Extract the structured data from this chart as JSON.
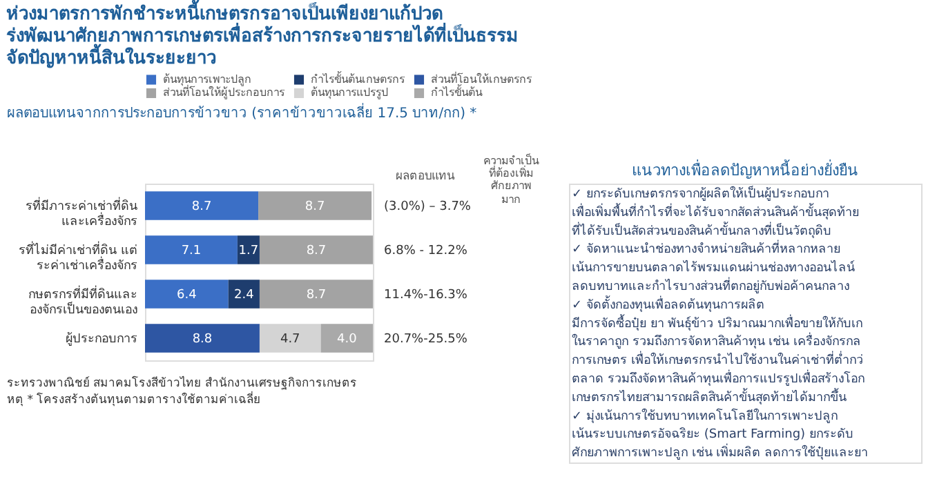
{
  "chart_data": [
    {
      "type": "bar",
      "title": "ห่วงมาตรการพักชำระหนี้เกษตรกรอาจเป็นเพียงยาแก้ปวด\nร่งพัฒนาศักยภาพการเกษตรเพื่อสร้างการกระจายรายได้ที่เป็นธรรม\nจัดปัญหาหนี้สินในระยะยาว",
      "subtitle": "ผลตอบแทนจากการประกอบการข้าวขาว (ราคาข้าวขาวเฉลี่ย 17.5 บาท/กก) *",
      "orientation": "horizontal",
      "stacked": true,
      "legend": "top",
      "tick_labels": "y",
      "categories": [
        "รที่มีภาระค่าเช่าที่ดิน\nและเครื่องจักร",
        "รที่ไม่มีค่าเช่าที่ดิน แต่\nระค่าเช่าเครื่องจักร",
        "กษตรกรที่มีที่ดินและ\nองจักรเป็นของตนเอง",
        "ผู้ประกอบการ"
      ],
      "series": [
        {
          "name": "ต้นทุนการเพาะปลูก",
          "color": "#3b6fc6",
          "values": [
            8.7,
            7.1,
            6.4,
            null
          ],
          "value_labels": [
            "8.7",
            "7.1",
            "6.4",
            null
          ]
        },
        {
          "name": "กำไรขั้นต้นเกษตรกร",
          "color": "#1e3d6e",
          "values": [
            null,
            1.7,
            2.4,
            null
          ],
          "value_labels": [
            null,
            "1.7",
            "2.4",
            null
          ]
        },
        {
          "name": "ส่วนที่โอนให้เกษตรกร",
          "color": "#2e56a3",
          "values": [
            null,
            null,
            null,
            8.8
          ],
          "value_labels": [
            null,
            null,
            null,
            "8.8"
          ]
        },
        {
          "name": "ส่วนที่โอนให้ผู้ประกอบการ",
          "color": "#a3a3a3",
          "values": [
            8.7,
            8.7,
            8.7,
            null
          ],
          "value_labels": [
            "8.7",
            "8.7",
            "8.7",
            null
          ]
        },
        {
          "name": "ต้นทุนการแปรรูป",
          "color": "#d4d4d4",
          "values": [
            null,
            null,
            null,
            4.7
          ],
          "value_labels": [
            null,
            null,
            null,
            "4.7"
          ]
        },
        {
          "name": "กำไรขั้นต้น",
          "color": "#a9a9a9",
          "values": [
            null,
            null,
            null,
            4.0
          ],
          "value_labels": [
            null,
            null,
            null,
            "4.0"
          ]
        }
      ],
      "annotations": [
        "(3.0%) – 3.7%",
        "6.8% - 12.2%",
        "11.4%-16.3%",
        "20.7%-25.5%",
        "ผลตอบแทน",
        "ความจำเป็น\nที่ต้องเพิ่ม\nศักยภาพ",
        "มาก",
        "ระทรวงพาณิชย์ สมาคมโรงสีข้าวไทย สำนักงานเศรษฐกิจการเกษตร",
        "หตุ * โครงสร้างต้นทุนตามตารางใช้ตามค่าเฉลี่ย"
      ]
    },
    {
      "type": "other",
      "title": "แนวทางเพื่อลดปัญหาหนี้อย่างยั่งยืน",
      "annotations": [
        "✓ ยกระดับเกษตรกรจากผู้ผลิตให้เป็นผู้ประกอบกา",
        "เพื่อเพิ่มพื้นที่กำไรที่จะได้รับจากสัดส่วนสินค้าขั้นสุดท้าย",
        "ที่ได้รับเป็นสัดส่วนของสินค้าขั้นกลางที่เป็นวัตถุดิบ",
        "✓ จัดหาแนะนำช่องทางจำหน่ายสินค้าที่หลากหลาย",
        "เน้นการขายบนตลาดไร้พรมแดนผ่านช่องทางออนไลน์",
        "ลดบทบาทและกำไรบางส่วนที่ตกอยู่กับพ่อค้าคนกลาง",
        "✓ จัดตั้งกองทุนเพื่อลดต้นทุนการผลิต",
        "มีการจัดซื้อปุ๋ย ยา พันธุ์ข้าว ปริมาณมากเพื่อขายให้กับเก",
        "ในราคาถูก รวมถึงการจัดหาสินค้าทุน เช่น เครื่องจักรกล",
        "การเกษตร เพื่อให้เกษตรกรนำไปใช้งานในค่าเช่าที่ต่ำกว่",
        "ตลาด รวมถึงจัดหาสินค้าทุนเพื่อการแปรรูปเพื่อสร้างโอก",
        "เกษตรกรไทยสามารถผลิตสินค้าขั้นสุดท้ายได้มากขึ้น",
        "✓ มุ่งเน้นการใช้บทบาทเทคโนโลยีในการเพาะปลูก",
        "เน้นระบบเกษตรอัจฉริยะ (Smart Farming) ยกระดับ",
        "ศักยภาพการเพาะปลูก เช่น เพิ่มผลิต ลดการใช้ปุ๋ยและยา"
      ]
    }
  ]
}
